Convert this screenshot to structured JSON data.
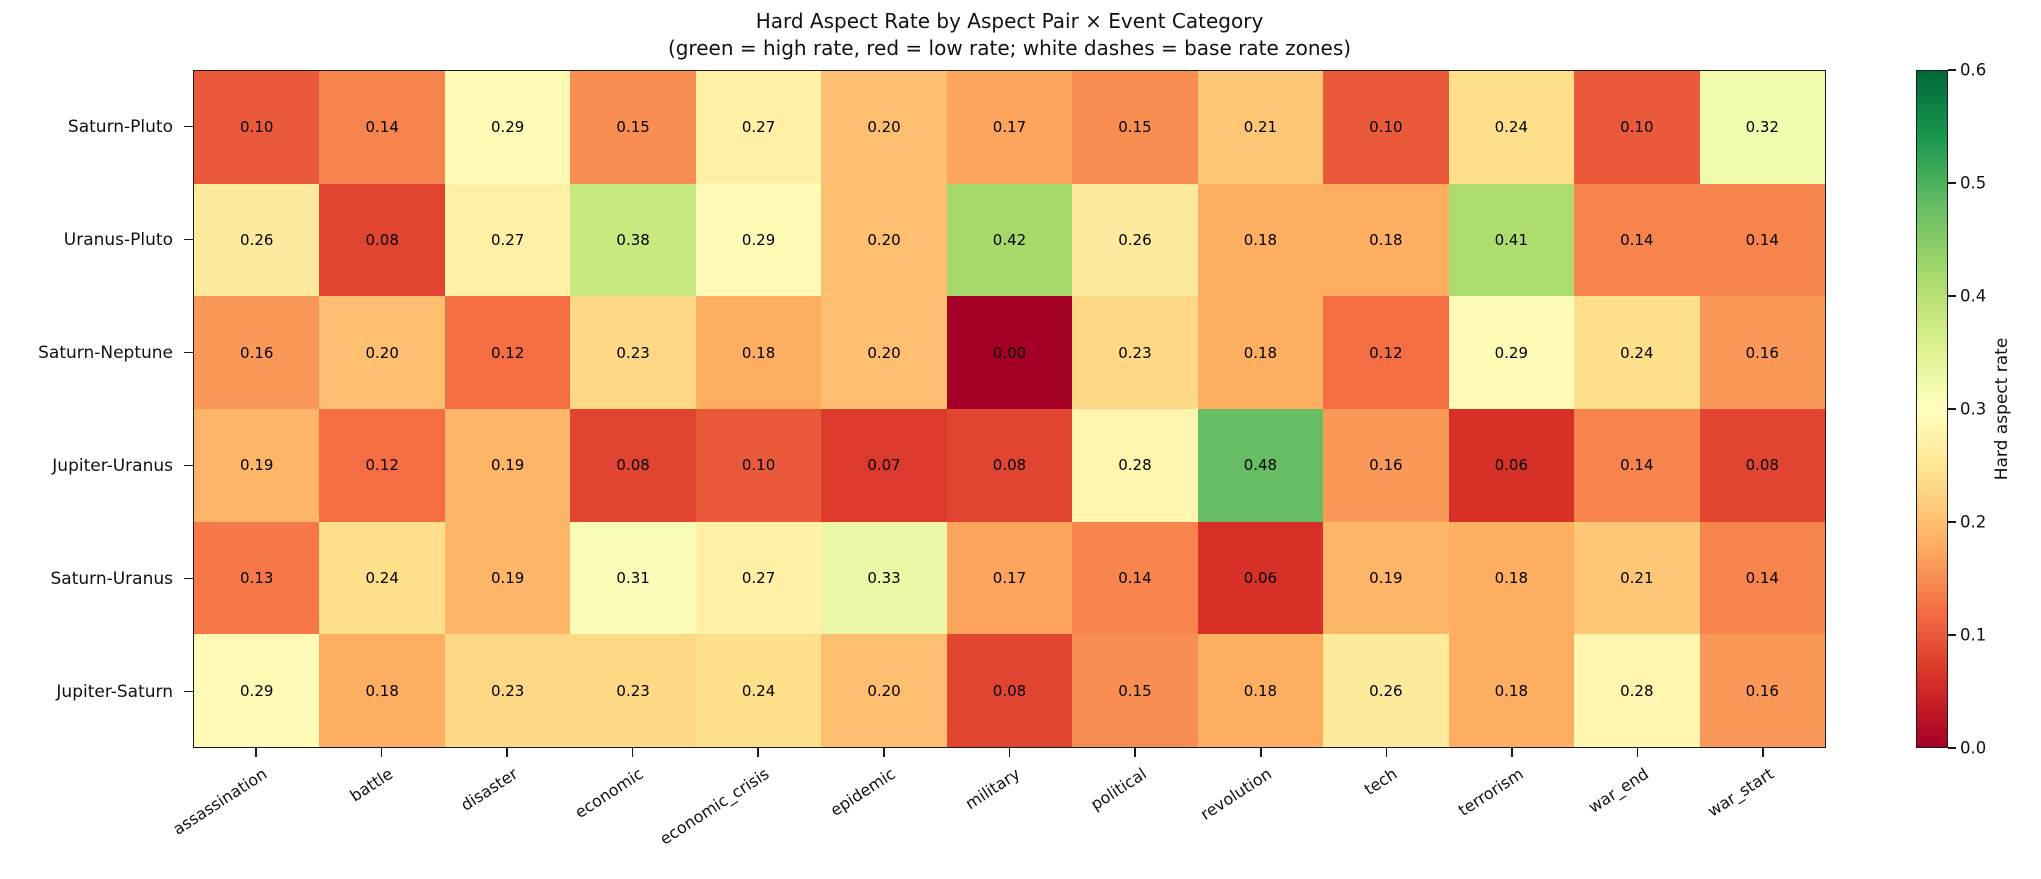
{
  "title": "Hard Aspect Rate by Aspect Pair × Event Category",
  "subtitle": "(green = high rate, red = low rate; white dashes = base rate zones)",
  "chart_data": {
    "type": "heatmap",
    "rows": [
      "Saturn-Pluto",
      "Uranus-Pluto",
      "Saturn-Neptune",
      "Jupiter-Uranus",
      "Saturn-Uranus",
      "Jupiter-Saturn"
    ],
    "columns": [
      "assassination",
      "battle",
      "disaster",
      "economic",
      "economic_crisis",
      "epidemic",
      "military",
      "political",
      "revolution",
      "tech",
      "terrorism",
      "war_end",
      "war_start"
    ],
    "values": [
      [
        0.1,
        0.14,
        0.29,
        0.15,
        0.27,
        0.2,
        0.17,
        0.15,
        0.21,
        0.1,
        0.24,
        0.1,
        0.32
      ],
      [
        0.26,
        0.08,
        0.27,
        0.38,
        0.29,
        0.2,
        0.42,
        0.26,
        0.18,
        0.18,
        0.41,
        0.14,
        0.14
      ],
      [
        0.16,
        0.2,
        0.12,
        0.23,
        0.18,
        0.2,
        0.0,
        0.23,
        0.18,
        0.12,
        0.29,
        0.24,
        0.16
      ],
      [
        0.19,
        0.12,
        0.19,
        0.08,
        0.1,
        0.07,
        0.08,
        0.28,
        0.48,
        0.16,
        0.06,
        0.14,
        0.08
      ],
      [
        0.13,
        0.24,
        0.19,
        0.31,
        0.27,
        0.33,
        0.17,
        0.14,
        0.06,
        0.19,
        0.18,
        0.21,
        0.14
      ],
      [
        0.29,
        0.18,
        0.23,
        0.23,
        0.24,
        0.2,
        0.08,
        0.15,
        0.18,
        0.26,
        0.18,
        0.28,
        0.16
      ]
    ],
    "value_decimals": 2,
    "grid": false,
    "colorbar": {
      "label": "Hard aspect rate",
      "vmin": 0.0,
      "vmax": 0.6,
      "ticks": [
        0.0,
        0.1,
        0.2,
        0.3,
        0.4,
        0.5,
        0.6
      ],
      "colormap_name": "RdYlGn",
      "colormap_anchors": [
        "#a50026",
        "#d73027",
        "#f46d43",
        "#fdae61",
        "#fee08b",
        "#ffffbf",
        "#d9ef8b",
        "#a6d96a",
        "#66bd63",
        "#1a9850",
        "#006837"
      ]
    }
  }
}
